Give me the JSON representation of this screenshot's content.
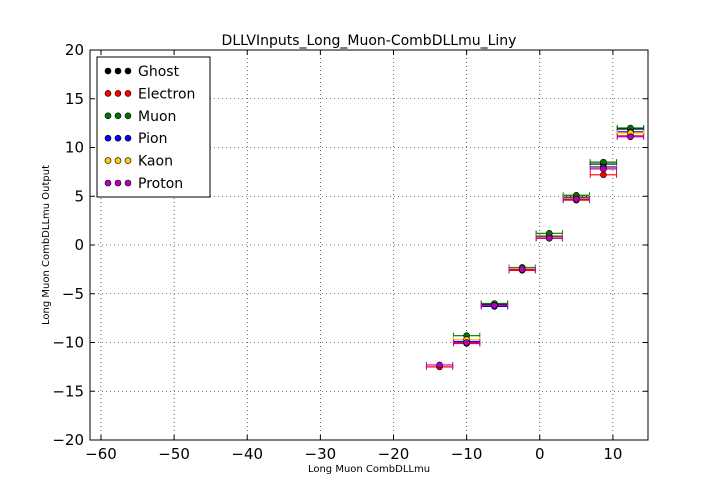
{
  "chart_data": {
    "type": "scatter",
    "title": "DLLVInputs_Long_Muon-CombDLLmu_Liny",
    "xlabel": "Long Muon CombDLLmu",
    "ylabel": "Long Muon CombDLLmu Output",
    "xlim": [
      -61.5,
      14.8
    ],
    "ylim": [
      -20,
      20
    ],
    "xticks": [
      -60,
      -50,
      -40,
      -30,
      -20,
      -10,
      0,
      10
    ],
    "yticks": [
      -20,
      -15,
      -10,
      -5,
      0,
      5,
      10,
      15,
      20
    ],
    "grid": true,
    "legend_position": "top-left",
    "bin_half_width": 1.8,
    "series": [
      {
        "name": "Ghost",
        "color": "#000000",
        "points": [
          [
            -6.2,
            -6.1
          ],
          [
            -2.4,
            -2.4
          ],
          [
            1.3,
            0.9
          ],
          [
            5.0,
            4.9
          ],
          [
            8.7,
            8.3
          ],
          [
            12.4,
            11.9
          ]
        ]
      },
      {
        "name": "Electron",
        "color": "#ff0000",
        "points": [
          [
            -13.7,
            -12.5
          ],
          [
            -10.0,
            -10.1
          ],
          [
            -6.2,
            -6.2
          ],
          [
            -2.4,
            -2.6
          ],
          [
            1.3,
            0.7
          ],
          [
            5.0,
            4.6
          ],
          [
            8.7,
            7.2
          ],
          [
            12.4,
            11.2
          ]
        ]
      },
      {
        "name": "Muon",
        "color": "#007700",
        "points": [
          [
            -10.0,
            -9.3
          ],
          [
            -6.2,
            -6.0
          ],
          [
            -2.4,
            -2.3
          ],
          [
            1.3,
            1.2
          ],
          [
            5.0,
            5.1
          ],
          [
            8.7,
            8.5
          ],
          [
            12.4,
            12.0
          ]
        ]
      },
      {
        "name": "Pion",
        "color": "#0000ff",
        "points": [
          [
            -10.0,
            -9.9
          ],
          [
            -6.2,
            -6.3
          ],
          [
            -2.4,
            -2.5
          ],
          [
            1.3,
            0.7
          ],
          [
            5.0,
            4.7
          ],
          [
            8.7,
            8.0
          ],
          [
            12.4,
            11.6
          ]
        ]
      },
      {
        "name": "Kaon",
        "color": "#ffcc00",
        "points": [
          [
            -10.0,
            -9.7
          ],
          [
            -6.2,
            -6.2
          ],
          [
            -2.4,
            -2.4
          ],
          [
            1.3,
            0.8
          ],
          [
            5.0,
            4.8
          ],
          [
            8.7,
            7.9
          ],
          [
            12.4,
            11.5
          ]
        ]
      },
      {
        "name": "Proton",
        "color": "#bb00bb",
        "points": [
          [
            -13.7,
            -12.3
          ],
          [
            -10.0,
            -10.0
          ],
          [
            -6.2,
            -6.2
          ],
          [
            -2.4,
            -2.5
          ],
          [
            1.3,
            0.7
          ],
          [
            5.0,
            4.7
          ],
          [
            8.7,
            7.8
          ],
          [
            12.4,
            11.1
          ]
        ]
      }
    ]
  }
}
